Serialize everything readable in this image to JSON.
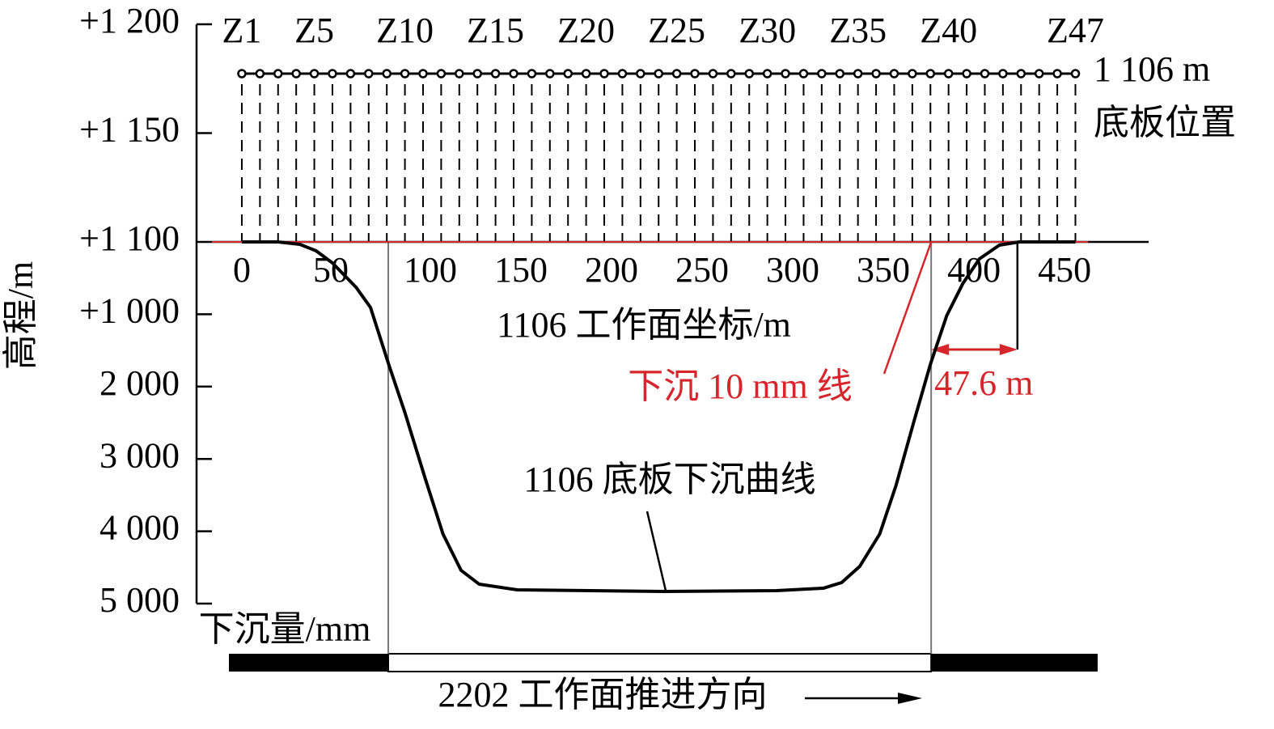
{
  "chart_data": {
    "type": "line",
    "y_label": "高程/m",
    "y2_label": "下沉量/mm",
    "x_label": "1106 工作面坐标/m",
    "xlim": [
      -16.5,
      500.4
    ],
    "xticks": [
      0,
      50,
      100,
      150,
      200,
      250,
      300,
      350,
      400,
      450
    ],
    "ylim": [
      1100,
      1200
    ],
    "yticks": [
      {
        "value": 1100,
        "label": "+1 100"
      },
      {
        "value": 1150,
        "label": "+1 150"
      },
      {
        "value": 1200,
        "label": "+1 200"
      }
    ],
    "y2lim": [
      0,
      5000
    ],
    "y2ticks": [
      {
        "value": 1000,
        "label": "+1 000"
      },
      {
        "value": 2000,
        "label": "2 000"
      },
      {
        "value": 3000,
        "label": "3 000"
      },
      {
        "value": 4000,
        "label": "4 000"
      },
      {
        "value": 5000,
        "label": "5 000"
      }
    ],
    "x": [
      0,
      20,
      32,
      41,
      50,
      63,
      71,
      81,
      90,
      101,
      111,
      121,
      131,
      152,
      233,
      295,
      321,
      331,
      341,
      352,
      361,
      371,
      380,
      389,
      398,
      407,
      418,
      429,
      460
    ],
    "values": [
      0,
      0,
      34,
      123,
      291,
      626,
      906,
      1689,
      2360,
      3255,
      4038,
      4541,
      4732,
      4810,
      4832,
      4821,
      4787,
      4709,
      4485,
      4038,
      3367,
      2472,
      1689,
      1018,
      570,
      235,
      45,
      0,
      0
    ],
    "color": "#000000",
    "stations": {
      "x": [
        0,
        10,
        20,
        30,
        40,
        50,
        60,
        70,
        80,
        90,
        100,
        110,
        120,
        130,
        140,
        150,
        160,
        170,
        180,
        190,
        200,
        210,
        220,
        230,
        240,
        250,
        260,
        270,
        280,
        290,
        300,
        310,
        320,
        330,
        340,
        350,
        360,
        370,
        380,
        390,
        400,
        410,
        420,
        430,
        440,
        450,
        460
      ],
      "labels": [
        "Z1",
        null,
        null,
        null,
        "Z5",
        null,
        null,
        null,
        null,
        "Z10",
        null,
        null,
        null,
        null,
        "Z15",
        null,
        null,
        null,
        null,
        "Z20",
        null,
        null,
        null,
        null,
        "Z25",
        null,
        null,
        null,
        null,
        "Z30",
        null,
        null,
        null,
        null,
        "Z35",
        null,
        null,
        null,
        null,
        "Z40",
        null,
        null,
        null,
        null,
        null,
        null,
        "Z47"
      ]
    },
    "floor_label": "1 106 m",
    "floor_label2": "底板位置",
    "threshold_label": "下沉 10 mm 线",
    "threshold_color": "#d7262b",
    "curve_label": "1106 底板下沉曲线",
    "face_edges": [
      80.8,
      380.4
    ],
    "offset": {
      "value": 47.6,
      "label": "47.6 m"
    },
    "advance_label": "2202 工作面推进方向"
  }
}
